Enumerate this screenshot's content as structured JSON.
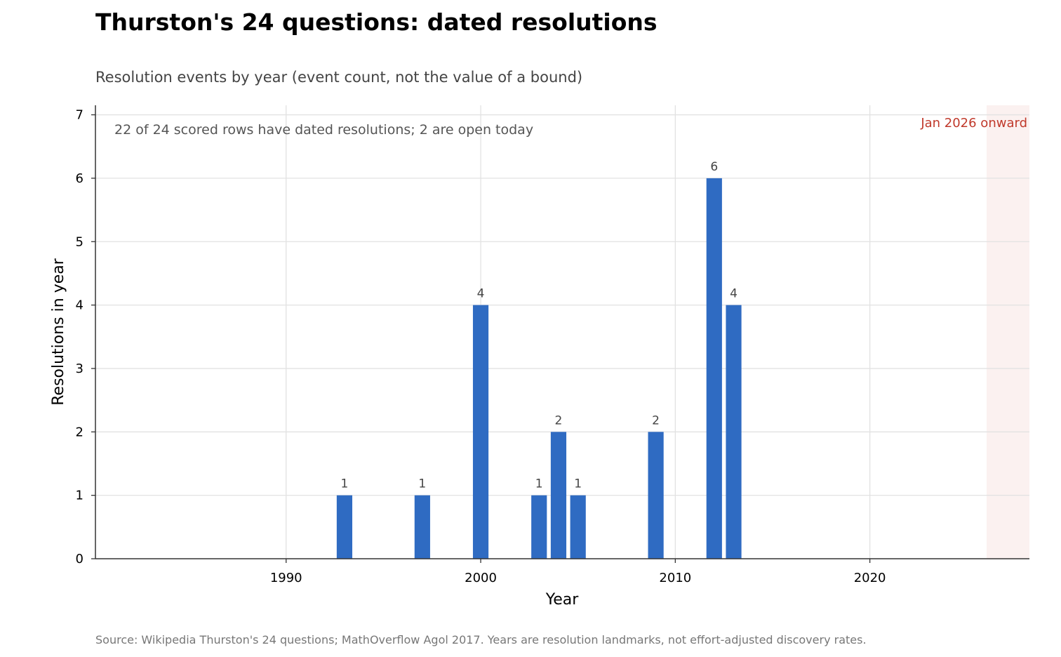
{
  "title": "Thurston's 24 questions: dated resolutions",
  "subtitle": "Resolution events by year (event count, not the value of a bound)",
  "source": "Source: Wikipedia Thurston's 24 questions; MathOverflow Agol 2017. Years are resolution landmarks, not effort-adjusted discovery rates.",
  "chart_data": {
    "type": "bar",
    "xlabel": "Year",
    "ylabel": "Resolutions in year",
    "x": [
      1993,
      1997,
      2000,
      2003,
      2004,
      2005,
      2009,
      2012,
      2013
    ],
    "values": [
      1,
      1,
      4,
      1,
      2,
      1,
      2,
      6,
      4
    ],
    "data_labels": [
      "1",
      "1",
      "4",
      "1",
      "2",
      "1",
      "2",
      "6",
      "4"
    ],
    "xlim": [
      1980.2,
      2028.2
    ],
    "ylim": [
      0,
      7.15
    ],
    "xticks": [
      1990,
      2000,
      2010,
      2020
    ],
    "yticks": [
      0,
      1,
      2,
      3,
      4,
      5,
      6,
      7
    ],
    "grid": true,
    "bar_color": "#2f6bc2",
    "annotation": "22 of 24 scored rows have dated resolutions; 2 are open today",
    "shaded_region": {
      "label": "Jan 2026 onward",
      "from": 2026,
      "color": "#c0392b"
    }
  }
}
